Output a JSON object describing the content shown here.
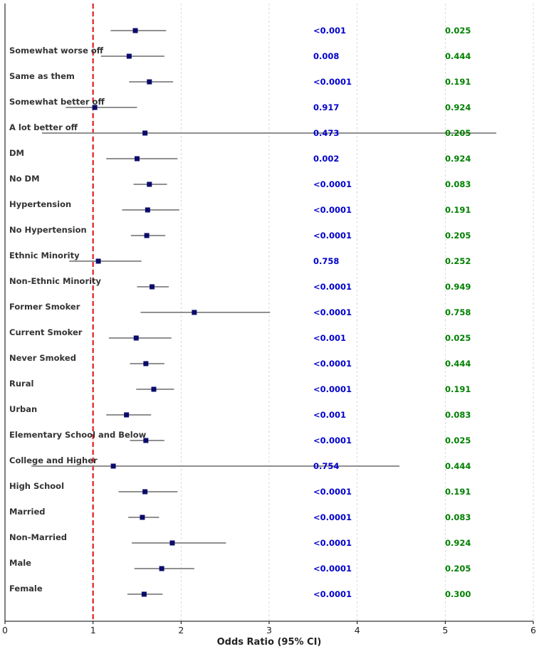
{
  "chart_data": {
    "type": "forest",
    "title": "",
    "xlabel": "Odds Ratio (95% CI)",
    "ylabel": "",
    "xlim": [
      0,
      6
    ],
    "x_ticks": [
      0,
      1,
      2,
      3,
      4,
      5,
      6
    ],
    "reference_line": 1,
    "grid": "vertical-dashed",
    "colors": {
      "marker": "#0b0b6b",
      "ci_line": "#808080",
      "reference": "#e02020",
      "p_value": "#0000cc",
      "p_interaction": "#008000",
      "label": "#333333"
    },
    "rows": [
      {
        "label": "",
        "or": 1.48,
        "lo": 1.2,
        "hi": 1.83,
        "p": "<0.001",
        "p_int": "0.025"
      },
      {
        "label": "Somewhat worse off",
        "or": 1.41,
        "lo": 1.09,
        "hi": 1.81,
        "p": "0.008",
        "p_int": "0.444"
      },
      {
        "label": "Same as them",
        "or": 1.64,
        "lo": 1.41,
        "hi": 1.91,
        "p": "<0.0001",
        "p_int": "0.191"
      },
      {
        "label": "Somewhat better off",
        "or": 1.02,
        "lo": 0.69,
        "hi": 1.5,
        "p": "0.917",
        "p_int": "0.924"
      },
      {
        "label": "A lot better off",
        "or": 1.59,
        "lo": 0.42,
        "hi": 5.58,
        "p": "0.473",
        "p_int": "0.205"
      },
      {
        "label": "DM",
        "or": 1.5,
        "lo": 1.15,
        "hi": 1.96,
        "p": "0.002",
        "p_int": "0.924"
      },
      {
        "label": "No DM",
        "or": 1.64,
        "lo": 1.46,
        "hi": 1.84,
        "p": "<0.0001",
        "p_int": "0.083"
      },
      {
        "label": "Hypertension",
        "or": 1.62,
        "lo": 1.33,
        "hi": 1.98,
        "p": "<0.0001",
        "p_int": "0.191"
      },
      {
        "label": "No Hypertension",
        "or": 1.61,
        "lo": 1.43,
        "hi": 1.82,
        "p": "<0.0001",
        "p_int": "0.205"
      },
      {
        "label": "Ethnic Minority",
        "or": 1.06,
        "lo": 0.73,
        "hi": 1.55,
        "p": "0.758",
        "p_int": "0.252"
      },
      {
        "label": "Non-Ethnic Minority",
        "or": 1.67,
        "lo": 1.5,
        "hi": 1.86,
        "p": "<0.0001",
        "p_int": "0.949"
      },
      {
        "label": "Former Smoker",
        "or": 2.15,
        "lo": 1.54,
        "hi": 3.01,
        "p": "<0.0001",
        "p_int": "0.758"
      },
      {
        "label": "Current Smoker",
        "or": 1.49,
        "lo": 1.18,
        "hi": 1.89,
        "p": "<0.001",
        "p_int": "0.025"
      },
      {
        "label": "Never Smoked",
        "or": 1.6,
        "lo": 1.42,
        "hi": 1.81,
        "p": "<0.0001",
        "p_int": "0.444"
      },
      {
        "label": "Rural",
        "or": 1.69,
        "lo": 1.49,
        "hi": 1.92,
        "p": "<0.0001",
        "p_int": "0.191"
      },
      {
        "label": "Urban",
        "or": 1.38,
        "lo": 1.15,
        "hi": 1.66,
        "p": "<0.001",
        "p_int": "0.083"
      },
      {
        "label": "Elementary School and Below",
        "or": 1.6,
        "lo": 1.42,
        "hi": 1.81,
        "p": "<0.0001",
        "p_int": "0.025"
      },
      {
        "label": "College and Higher",
        "or": 1.23,
        "lo": 0.3,
        "hi": 4.48,
        "p": "0.754",
        "p_int": "0.444"
      },
      {
        "label": "High School",
        "or": 1.59,
        "lo": 1.29,
        "hi": 1.96,
        "p": "<0.0001",
        "p_int": "0.191"
      },
      {
        "label": "Married",
        "or": 1.56,
        "lo": 1.4,
        "hi": 1.75,
        "p": "<0.0001",
        "p_int": "0.083"
      },
      {
        "label": "Non-Married",
        "or": 1.9,
        "lo": 1.44,
        "hi": 2.51,
        "p": "<0.0001",
        "p_int": "0.924"
      },
      {
        "label": "Male",
        "or": 1.78,
        "lo": 1.47,
        "hi": 2.15,
        "p": "<0.0001",
        "p_int": "0.205"
      },
      {
        "label": "Female",
        "or": 1.58,
        "lo": 1.39,
        "hi": 1.79,
        "p": "<0.0001",
        "p_int": "0.300"
      }
    ]
  }
}
